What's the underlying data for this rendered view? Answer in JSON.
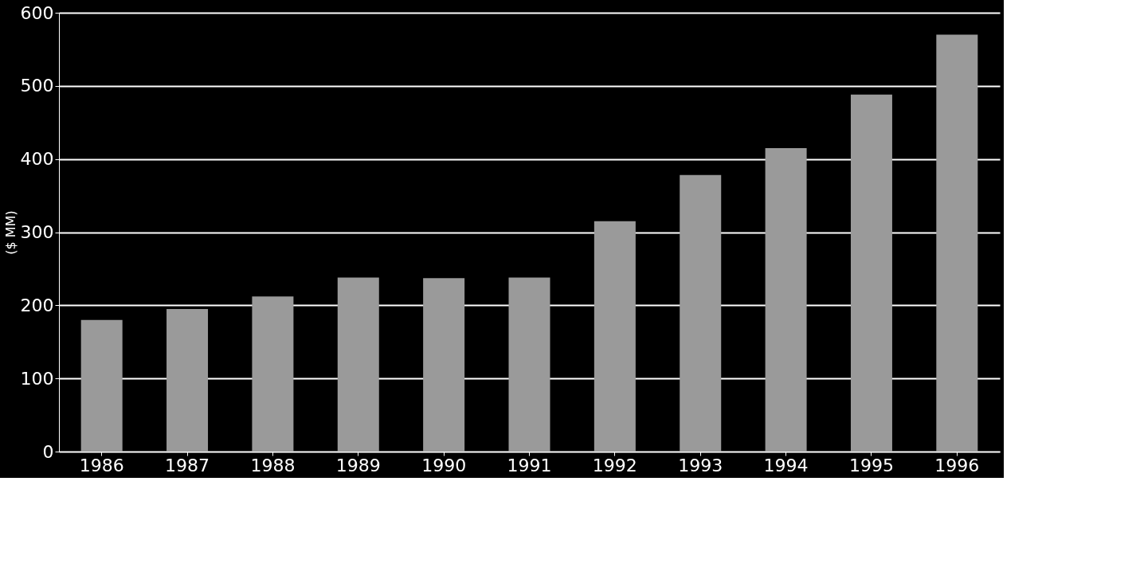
{
  "chart_data": {
    "type": "bar",
    "ylabel": "($ MM)",
    "categories": [
      "1986",
      "1987",
      "1988",
      "1989",
      "1990",
      "1991",
      "1992",
      "1993",
      "1994",
      "1995",
      "1996"
    ],
    "values": [
      180,
      195,
      212,
      238,
      237,
      238,
      315,
      378,
      415,
      488,
      570
    ],
    "color": "#9a9a9a",
    "ylim": [
      0,
      600
    ],
    "yticks": [
      0,
      100,
      200,
      300,
      400,
      500,
      600
    ],
    "grid": "y"
  }
}
